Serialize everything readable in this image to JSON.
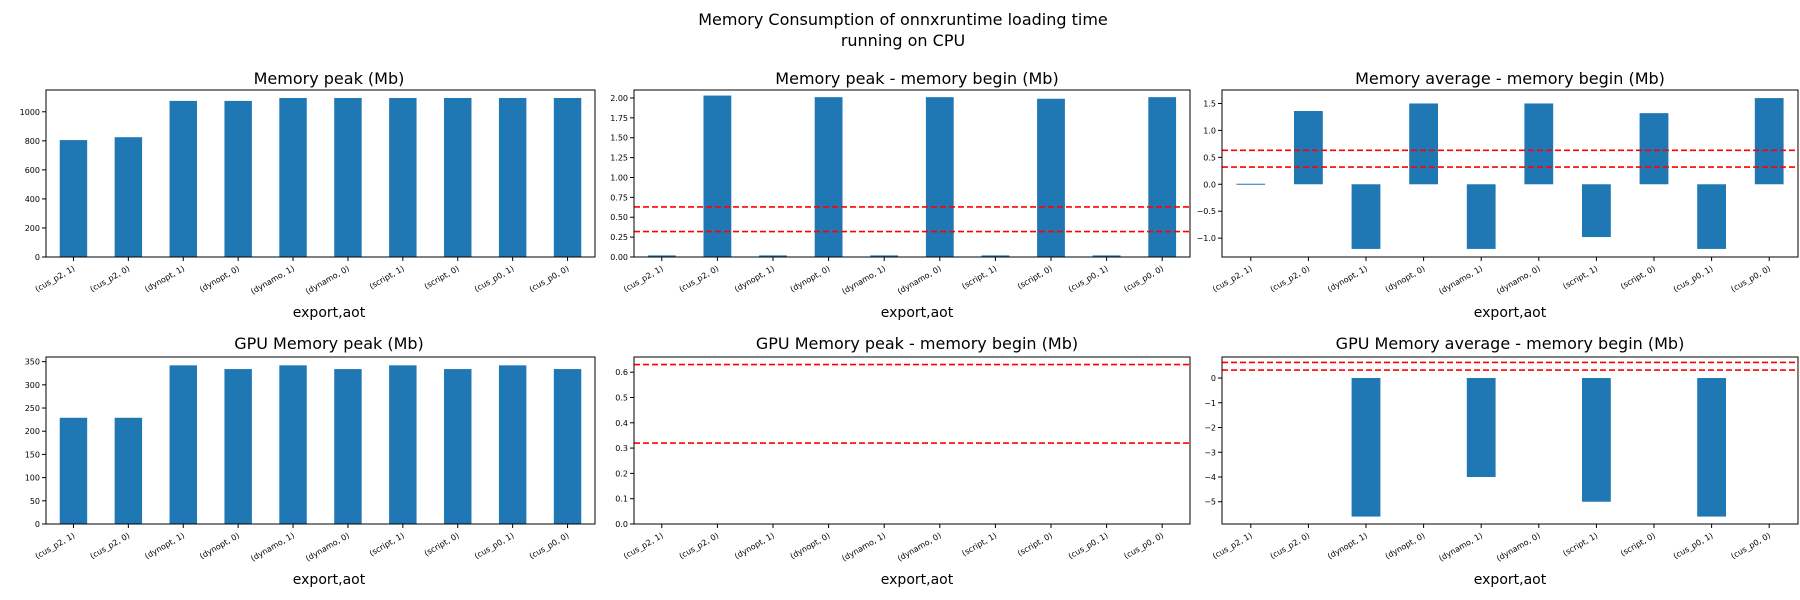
{
  "figure": {
    "suptitle": [
      "Memory Consumption of onnxruntime loading time",
      "running on CPU"
    ]
  },
  "style": {
    "bar_color": "#1f77b4",
    "refline_color": "#ff0000"
  },
  "chart_data": [
    {
      "type": "bar",
      "title": "Memory peak (Mb)",
      "xlabel": "export,aot",
      "categories": [
        "(cus_p2, 1)",
        "(cus_p2, 0)",
        "(dynopt, 1)",
        "(dynopt, 0)",
        "(dynamo, 1)",
        "(dynamo, 0)",
        "(script, 1)",
        "(script, 0)",
        "(cus_p0, 1)",
        "(cus_p0, 0)"
      ],
      "values": [
        805,
        825,
        1075,
        1075,
        1095,
        1095,
        1095,
        1095,
        1095,
        1095
      ],
      "ylim": [
        0,
        1150
      ],
      "yticks": [
        0,
        200,
        400,
        600,
        800,
        1000
      ],
      "ytick_labels": [
        "0",
        "200",
        "400",
        "600",
        "800",
        "1000"
      ],
      "reference_lines": []
    },
    {
      "type": "bar",
      "title": "Memory peak - memory begin (Mb)",
      "xlabel": "export,aot",
      "categories": [
        "(cus_p2, 1)",
        "(cus_p2, 0)",
        "(dynopt, 1)",
        "(dynopt, 0)",
        "(dynamo, 1)",
        "(dynamo, 0)",
        "(script, 1)",
        "(script, 0)",
        "(cus_p0, 1)",
        "(cus_p0, 0)"
      ],
      "values": [
        0.02,
        2.03,
        0.02,
        2.01,
        0.02,
        2.01,
        0.02,
        1.99,
        0.02,
        2.01
      ],
      "ylim": [
        0,
        2.1
      ],
      "yticks": [
        0,
        0.25,
        0.5,
        0.75,
        1.0,
        1.25,
        1.5,
        1.75,
        2.0
      ],
      "ytick_labels": [
        "0.00",
        "0.25",
        "0.50",
        "0.75",
        "1.00",
        "1.25",
        "1.50",
        "1.75",
        "2.00"
      ],
      "reference_lines": [
        0.63,
        0.32
      ]
    },
    {
      "type": "bar",
      "title": "Memory average - memory begin (Mb)",
      "xlabel": "export,aot",
      "categories": [
        "(cus_p2, 1)",
        "(cus_p2, 0)",
        "(dynopt, 1)",
        "(dynopt, 0)",
        "(dynamo, 1)",
        "(dynamo, 0)",
        "(script, 1)",
        "(script, 0)",
        "(cus_p0, 1)",
        "(cus_p0, 0)"
      ],
      "values": [
        0.01,
        1.36,
        -1.2,
        1.5,
        -1.2,
        1.5,
        -0.98,
        1.32,
        -1.2,
        1.6
      ],
      "ylim": [
        -1.35,
        1.75
      ],
      "yticks": [
        -1.0,
        -0.5,
        0.0,
        0.5,
        1.0,
        1.5
      ],
      "ytick_labels": [
        "−1.0",
        "−0.5",
        "0.0",
        "0.5",
        "1.0",
        "1.5"
      ],
      "reference_lines": [
        0.63,
        0.32
      ]
    },
    {
      "type": "bar",
      "title": "GPU Memory peak (Mb)",
      "xlabel": "export,aot",
      "categories": [
        "(cus_p2, 1)",
        "(cus_p2, 0)",
        "(dynopt, 1)",
        "(dynopt, 0)",
        "(dynamo, 1)",
        "(dynamo, 0)",
        "(script, 1)",
        "(script, 0)",
        "(cus_p0, 1)",
        "(cus_p0, 0)"
      ],
      "values": [
        229,
        229,
        342,
        334,
        342,
        334,
        342,
        334,
        342,
        334
      ],
      "ylim": [
        0,
        360
      ],
      "yticks": [
        0,
        50,
        100,
        150,
        200,
        250,
        300,
        350
      ],
      "ytick_labels": [
        "0",
        "50",
        "100",
        "150",
        "200",
        "250",
        "300",
        "350"
      ],
      "reference_lines": []
    },
    {
      "type": "bar",
      "title": "GPU Memory peak - memory begin (Mb)",
      "xlabel": "export,aot",
      "categories": [
        "(cus_p2, 1)",
        "(cus_p2, 0)",
        "(dynopt, 1)",
        "(dynopt, 0)",
        "(dynamo, 1)",
        "(dynamo, 0)",
        "(script, 1)",
        "(script, 0)",
        "(cus_p0, 1)",
        "(cus_p0, 0)"
      ],
      "values": [
        0,
        0,
        0,
        0,
        0,
        0,
        0,
        0,
        0,
        0
      ],
      "ylim": [
        0,
        0.66
      ],
      "yticks": [
        0,
        0.1,
        0.2,
        0.3,
        0.4,
        0.5,
        0.6
      ],
      "ytick_labels": [
        "0.0",
        "0.1",
        "0.2",
        "0.3",
        "0.4",
        "0.5",
        "0.6"
      ],
      "reference_lines": [
        0.63,
        0.32
      ]
    },
    {
      "type": "bar",
      "title": "GPU Memory average - memory begin (Mb)",
      "xlabel": "export,aot",
      "categories": [
        "(cus_p2, 1)",
        "(cus_p2, 0)",
        "(dynopt, 1)",
        "(dynopt, 0)",
        "(dynamo, 1)",
        "(dynamo, 0)",
        "(script, 1)",
        "(script, 0)",
        "(cus_p0, 1)",
        "(cus_p0, 0)"
      ],
      "values": [
        0,
        0,
        -5.6,
        0,
        -4.0,
        0,
        -5.0,
        0,
        -5.6,
        0
      ],
      "ylim": [
        -5.9,
        0.85
      ],
      "yticks": [
        -5,
        -4,
        -3,
        -2,
        -1,
        0
      ],
      "ytick_labels": [
        "−5",
        "−4",
        "−3",
        "−2",
        "−1",
        "0"
      ],
      "reference_lines": [
        0.63,
        0.32
      ]
    }
  ]
}
